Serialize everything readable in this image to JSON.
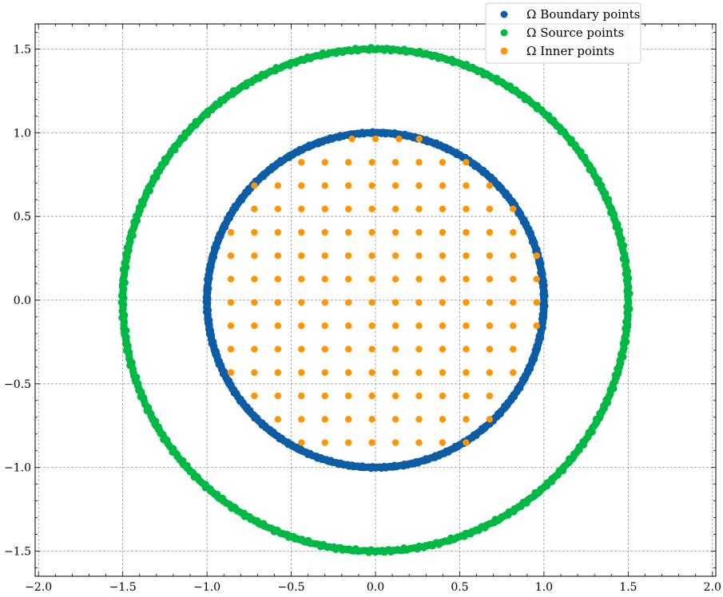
{
  "chart_data": {
    "type": "scatter",
    "title": "",
    "xlabel": "",
    "ylabel": "",
    "xlim": [
      -2.02,
      2.02
    ],
    "ylim": [
      -1.65,
      1.65
    ],
    "xticks": [
      -2.0,
      -1.5,
      -1.0,
      -0.5,
      0.0,
      0.5,
      1.0,
      1.5,
      2.0
    ],
    "yticks": [
      -1.5,
      -1.0,
      -0.5,
      0.0,
      0.5,
      1.0,
      1.5
    ],
    "xtick_labels": [
      "−2.0",
      "−1.5",
      "−1.0",
      "−0.5",
      "0.0",
      "0.5",
      "1.0",
      "1.5",
      "2.0"
    ],
    "ytick_labels": [
      "−1.5",
      "−1.0",
      "−0.5",
      "0.0",
      "0.5",
      "1.0",
      "1.5"
    ],
    "grid": true,
    "legend_position": "top-right",
    "series": [
      {
        "name": "Ω Boundary points",
        "color": "#0C5DA5",
        "shape": "circle",
        "radius": 1.0,
        "count": 720
      },
      {
        "name": "Ω Source points",
        "color": "#00B945",
        "shape": "circle",
        "radius": 1.5,
        "count": 720
      },
      {
        "name": "Ω Inner points",
        "color": "#FF9500",
        "shape": "grid-in-disk",
        "grid_origin": 0.0,
        "grid_step": 0.1396,
        "points": [
          [
            -0.1396,
            0.9632
          ],
          [
            0.0,
            0.9632
          ],
          [
            0.1396,
            0.9632
          ],
          [
            0.2593,
            0.9632
          ],
          [
            -0.4396,
            0.8236
          ],
          [
            -0.3,
            0.8236
          ],
          [
            -0.1604,
            0.8236
          ],
          [
            -0.0208,
            0.8236
          ],
          [
            0.1188,
            0.8236
          ],
          [
            0.2584,
            0.8236
          ],
          [
            0.398,
            0.8236
          ],
          [
            0.5376,
            0.8236
          ],
          [
            -0.7188,
            0.684
          ],
          [
            -0.5792,
            0.684
          ],
          [
            -0.4396,
            0.684
          ],
          [
            -0.3,
            0.684
          ],
          [
            -0.1604,
            0.684
          ],
          [
            -0.0208,
            0.684
          ],
          [
            0.1188,
            0.684
          ],
          [
            0.2584,
            0.684
          ],
          [
            0.398,
            0.684
          ],
          [
            0.5376,
            0.684
          ],
          [
            0.6772,
            0.684
          ],
          [
            -0.7188,
            0.5444
          ],
          [
            -0.5792,
            0.5444
          ],
          [
            -0.4396,
            0.5444
          ],
          [
            -0.3,
            0.5444
          ],
          [
            -0.1604,
            0.5444
          ],
          [
            -0.0208,
            0.5444
          ],
          [
            0.1188,
            0.5444
          ],
          [
            0.2584,
            0.5444
          ],
          [
            0.398,
            0.5444
          ],
          [
            0.5376,
            0.5444
          ],
          [
            0.6772,
            0.5444
          ],
          [
            0.8168,
            0.5444
          ],
          [
            -0.8584,
            0.4048
          ],
          [
            -0.7188,
            0.4048
          ],
          [
            -0.5792,
            0.4048
          ],
          [
            -0.4396,
            0.4048
          ],
          [
            -0.3,
            0.4048
          ],
          [
            -0.1604,
            0.4048
          ],
          [
            -0.0208,
            0.4048
          ],
          [
            0.1188,
            0.4048
          ],
          [
            0.2584,
            0.4048
          ],
          [
            0.398,
            0.4048
          ],
          [
            0.5376,
            0.4048
          ],
          [
            0.6772,
            0.4048
          ],
          [
            0.8168,
            0.4048
          ],
          [
            -0.8584,
            0.2652
          ],
          [
            -0.7188,
            0.2652
          ],
          [
            -0.5792,
            0.2652
          ],
          [
            -0.4396,
            0.2652
          ],
          [
            -0.3,
            0.2652
          ],
          [
            -0.1604,
            0.2652
          ],
          [
            -0.0208,
            0.2652
          ],
          [
            0.1188,
            0.2652
          ],
          [
            0.2584,
            0.2652
          ],
          [
            0.398,
            0.2652
          ],
          [
            0.5376,
            0.2652
          ],
          [
            0.6772,
            0.2652
          ],
          [
            0.8168,
            0.2652
          ],
          [
            0.9564,
            0.2652
          ],
          [
            -0.8584,
            0.1256
          ],
          [
            -0.7188,
            0.1256
          ],
          [
            -0.5792,
            0.1256
          ],
          [
            -0.4396,
            0.1256
          ],
          [
            -0.3,
            0.1256
          ],
          [
            -0.1604,
            0.1256
          ],
          [
            -0.0208,
            0.1256
          ],
          [
            0.1188,
            0.1256
          ],
          [
            0.2584,
            0.1256
          ],
          [
            0.398,
            0.1256
          ],
          [
            0.5376,
            0.1256
          ],
          [
            0.6772,
            0.1256
          ],
          [
            0.8168,
            0.1256
          ],
          [
            0.9564,
            0.1256
          ],
          [
            -0.8584,
            -0.014
          ],
          [
            -0.7188,
            -0.014
          ],
          [
            -0.5792,
            -0.014
          ],
          [
            -0.4396,
            -0.014
          ],
          [
            -0.3,
            -0.014
          ],
          [
            -0.1604,
            -0.014
          ],
          [
            -0.0208,
            -0.014
          ],
          [
            0.1188,
            -0.014
          ],
          [
            0.2584,
            -0.014
          ],
          [
            0.398,
            -0.014
          ],
          [
            0.5376,
            -0.014
          ],
          [
            0.6772,
            -0.014
          ],
          [
            0.8168,
            -0.014
          ],
          [
            0.9564,
            -0.014
          ],
          [
            -0.8584,
            -0.1536
          ],
          [
            -0.7188,
            -0.1536
          ],
          [
            -0.5792,
            -0.1536
          ],
          [
            -0.4396,
            -0.1536
          ],
          [
            -0.3,
            -0.1536
          ],
          [
            -0.1604,
            -0.1536
          ],
          [
            -0.0208,
            -0.1536
          ],
          [
            0.1188,
            -0.1536
          ],
          [
            0.2584,
            -0.1536
          ],
          [
            0.398,
            -0.1536
          ],
          [
            0.5376,
            -0.1536
          ],
          [
            0.6772,
            -0.1536
          ],
          [
            0.8168,
            -0.1536
          ],
          [
            0.9564,
            -0.1536
          ],
          [
            -0.8584,
            -0.2932
          ],
          [
            -0.7188,
            -0.2932
          ],
          [
            -0.5792,
            -0.2932
          ],
          [
            -0.4396,
            -0.2932
          ],
          [
            -0.3,
            -0.2932
          ],
          [
            -0.1604,
            -0.2932
          ],
          [
            -0.0208,
            -0.2932
          ],
          [
            0.1188,
            -0.2932
          ],
          [
            0.2584,
            -0.2932
          ],
          [
            0.398,
            -0.2932
          ],
          [
            0.5376,
            -0.2932
          ],
          [
            0.6772,
            -0.2932
          ],
          [
            0.8168,
            -0.2932
          ],
          [
            -0.8584,
            -0.4328
          ],
          [
            -0.7188,
            -0.4328
          ],
          [
            -0.5792,
            -0.4328
          ],
          [
            -0.4396,
            -0.4328
          ],
          [
            -0.3,
            -0.4328
          ],
          [
            -0.1604,
            -0.4328
          ],
          [
            -0.0208,
            -0.4328
          ],
          [
            0.1188,
            -0.4328
          ],
          [
            0.2584,
            -0.4328
          ],
          [
            0.398,
            -0.4328
          ],
          [
            0.5376,
            -0.4328
          ],
          [
            0.6772,
            -0.4328
          ],
          [
            0.8168,
            -0.4328
          ],
          [
            -0.7188,
            -0.5724
          ],
          [
            -0.5792,
            -0.5724
          ],
          [
            -0.4396,
            -0.5724
          ],
          [
            -0.3,
            -0.5724
          ],
          [
            -0.1604,
            -0.5724
          ],
          [
            -0.0208,
            -0.5724
          ],
          [
            0.1188,
            -0.5724
          ],
          [
            0.2584,
            -0.5724
          ],
          [
            0.398,
            -0.5724
          ],
          [
            0.5376,
            -0.5724
          ],
          [
            0.6772,
            -0.5724
          ],
          [
            -0.5792,
            -0.712
          ],
          [
            -0.4396,
            -0.712
          ],
          [
            -0.3,
            -0.712
          ],
          [
            -0.1604,
            -0.712
          ],
          [
            -0.0208,
            -0.712
          ],
          [
            0.1188,
            -0.712
          ],
          [
            0.2584,
            -0.712
          ],
          [
            0.398,
            -0.712
          ],
          [
            0.5376,
            -0.712
          ],
          [
            0.6772,
            -0.712
          ],
          [
            -0.4396,
            -0.8516
          ],
          [
            -0.3,
            -0.8516
          ],
          [
            -0.1604,
            -0.8516
          ],
          [
            -0.0208,
            -0.8516
          ],
          [
            0.1188,
            -0.8516
          ],
          [
            0.2584,
            -0.8516
          ],
          [
            0.398,
            -0.8516
          ],
          [
            0.5376,
            -0.8516
          ]
        ]
      }
    ]
  }
}
